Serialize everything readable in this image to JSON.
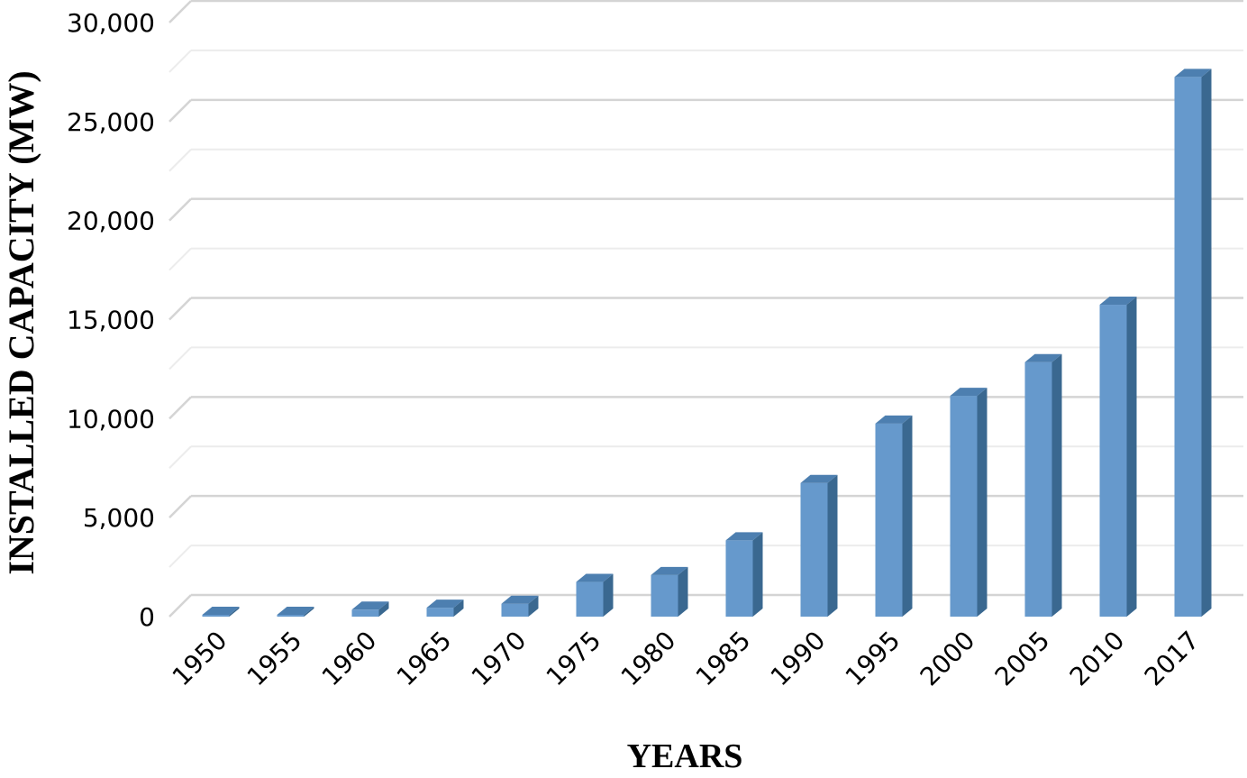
{
  "chart_data": {
    "type": "bar",
    "title": "",
    "xlabel": "YEARS",
    "ylabel": "INSTALLED CAPACITY (MW)",
    "categories": [
      "1950",
      "1955",
      "1960",
      "1965",
      "1970",
      "1975",
      "1980",
      "1985",
      "1990",
      "1995",
      "2000",
      "2005",
      "2010",
      "2017"
    ],
    "values": [
      0,
      0,
      350,
      450,
      650,
      1750,
      2100,
      3850,
      6750,
      9750,
      11150,
      12850,
      15750,
      27250
    ],
    "ylim": [
      0,
      30000
    ],
    "yticks": [
      0,
      5000,
      10000,
      15000,
      20000,
      25000,
      30000
    ],
    "ytick_labels": [
      "0",
      "5,000",
      "10,000",
      "15,000",
      "20,000",
      "25,000",
      "30,000"
    ],
    "grid": true,
    "bar_style": "3d",
    "colors": {
      "bar_front": "#6699cc",
      "bar_side": "#3a6890",
      "bar_top": "#4d7fb0",
      "gridline": "#d9d9d9"
    }
  }
}
